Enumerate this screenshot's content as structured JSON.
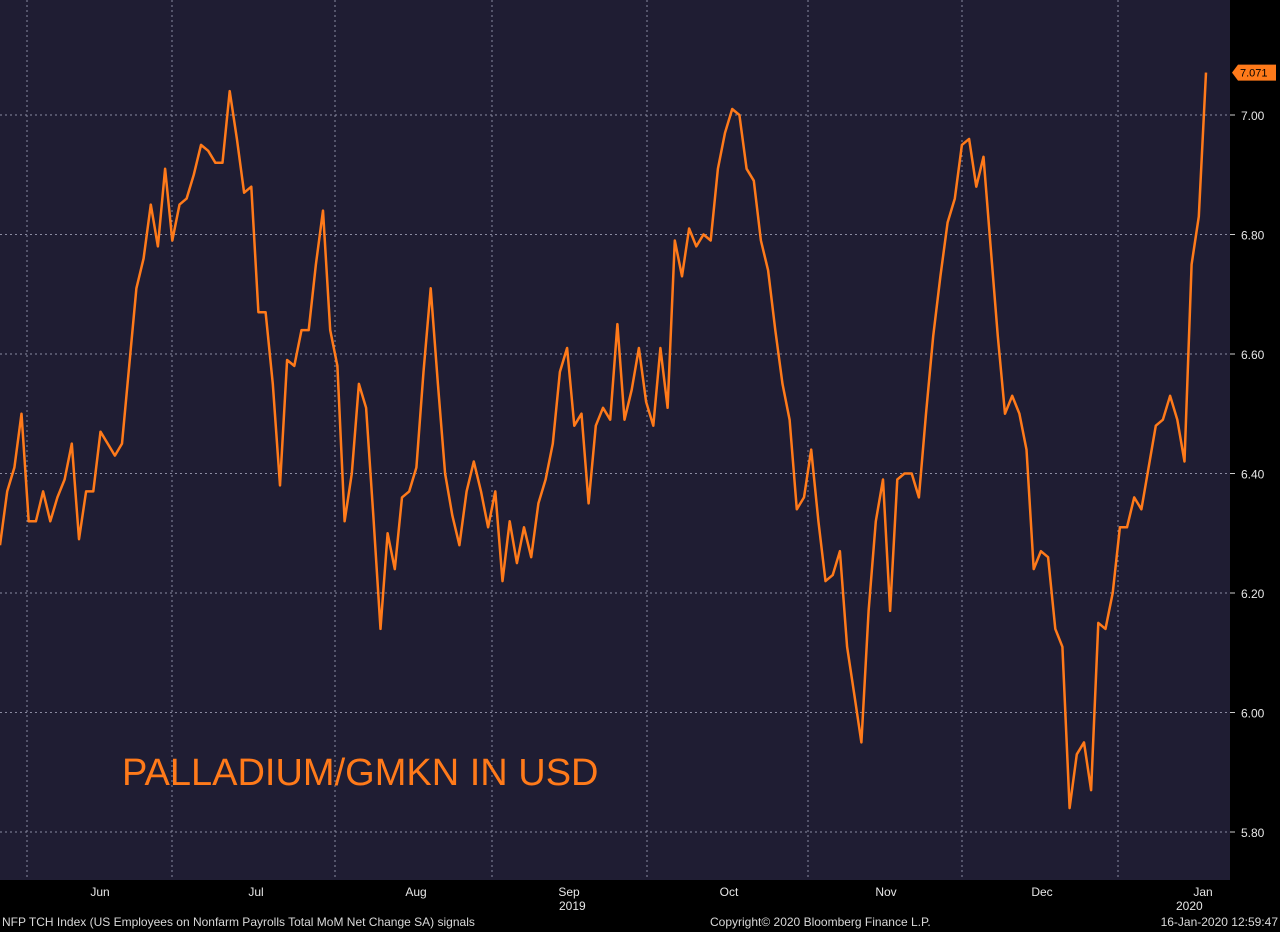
{
  "colors": {
    "plot_background": "#1f1d33",
    "axis_background": "#000000",
    "series": "#ff7a1a",
    "grid": "#8a8aa0",
    "tick_text": "#e6e6e6",
    "last_value_badge": "#ff7a1a"
  },
  "annotation": "PALLADIUM/GMKN IN USD",
  "footer": {
    "left": "NFP TCH Index (US Employees on Nonfarm Payrolls Total MoM Net Change SA) signals",
    "center": "Copyright© 2020 Bloomberg Finance L.P.",
    "right": "16-Jan-2020 12:59:47"
  },
  "chart_data": {
    "type": "line",
    "title": "",
    "xlabel": "",
    "ylabel": "",
    "grid": true,
    "y_axis_position": "right",
    "ylim": [
      5.77,
      7.2
    ],
    "y_ticks": [
      5.8,
      6.0,
      6.2,
      6.4,
      6.6,
      6.8,
      7.0
    ],
    "y_tick_labels": [
      "5.80",
      "6.00",
      "6.20",
      "6.40",
      "6.60",
      "6.80",
      "7.00"
    ],
    "x_month_labels": [
      "Jun",
      "Jul",
      "Aug",
      "Sep",
      "Oct",
      "Nov",
      "Dec",
      "Jan"
    ],
    "x_year_labels": [
      {
        "label": "2019",
        "under": "Sep"
      },
      {
        "label": "2020",
        "under": "Jan"
      }
    ],
    "last_value": 7.071,
    "last_value_label": "7.071",
    "series": [
      {
        "values": [
          6.28,
          6.37,
          6.41,
          6.5,
          6.32,
          6.32,
          6.37,
          6.32,
          6.36,
          6.39,
          6.45,
          6.29,
          6.37,
          6.37,
          6.47,
          6.45,
          6.43,
          6.45,
          6.58,
          6.71,
          6.76,
          6.85,
          6.78,
          6.91,
          6.79,
          6.85,
          6.86,
          6.9,
          6.95,
          6.94,
          6.92,
          6.92,
          7.04,
          6.96,
          6.87,
          6.88,
          6.67,
          6.67,
          6.55,
          6.38,
          6.59,
          6.58,
          6.64,
          6.64,
          6.75,
          6.84,
          6.64,
          6.58,
          6.32,
          6.4,
          6.55,
          6.51,
          6.33,
          6.14,
          6.3,
          6.24,
          6.36,
          6.37,
          6.41,
          6.57,
          6.71,
          6.55,
          6.4,
          6.33,
          6.28,
          6.37,
          6.42,
          6.37,
          6.31,
          6.37,
          6.22,
          6.32,
          6.25,
          6.31,
          6.26,
          6.35,
          6.39,
          6.45,
          6.57,
          6.61,
          6.48,
          6.5,
          6.35,
          6.48,
          6.51,
          6.49,
          6.65,
          6.49,
          6.54,
          6.61,
          6.52,
          6.48,
          6.61,
          6.51,
          6.79,
          6.73,
          6.81,
          6.78,
          6.8,
          6.79,
          6.91,
          6.97,
          7.01,
          7.0,
          6.91,
          6.89,
          6.79,
          6.74,
          6.64,
          6.55,
          6.49,
          6.34,
          6.36,
          6.44,
          6.32,
          6.22,
          6.23,
          6.27,
          6.11,
          6.03,
          5.95,
          6.17,
          6.32,
          6.39,
          6.17,
          6.39,
          6.4,
          6.4,
          6.36,
          6.5,
          6.63,
          6.73,
          6.82,
          6.86,
          6.95,
          6.96,
          6.88,
          6.93,
          6.78,
          6.63,
          6.5,
          6.53,
          6.5,
          6.44,
          6.24,
          6.27,
          6.26,
          6.14,
          6.11,
          5.84,
          5.93,
          5.95,
          5.87,
          6.15,
          6.14,
          6.2,
          6.31,
          6.31,
          6.36,
          6.34,
          6.41,
          6.48,
          6.49,
          6.53,
          6.49,
          6.42,
          6.75,
          6.83,
          7.071
        ]
      }
    ]
  }
}
